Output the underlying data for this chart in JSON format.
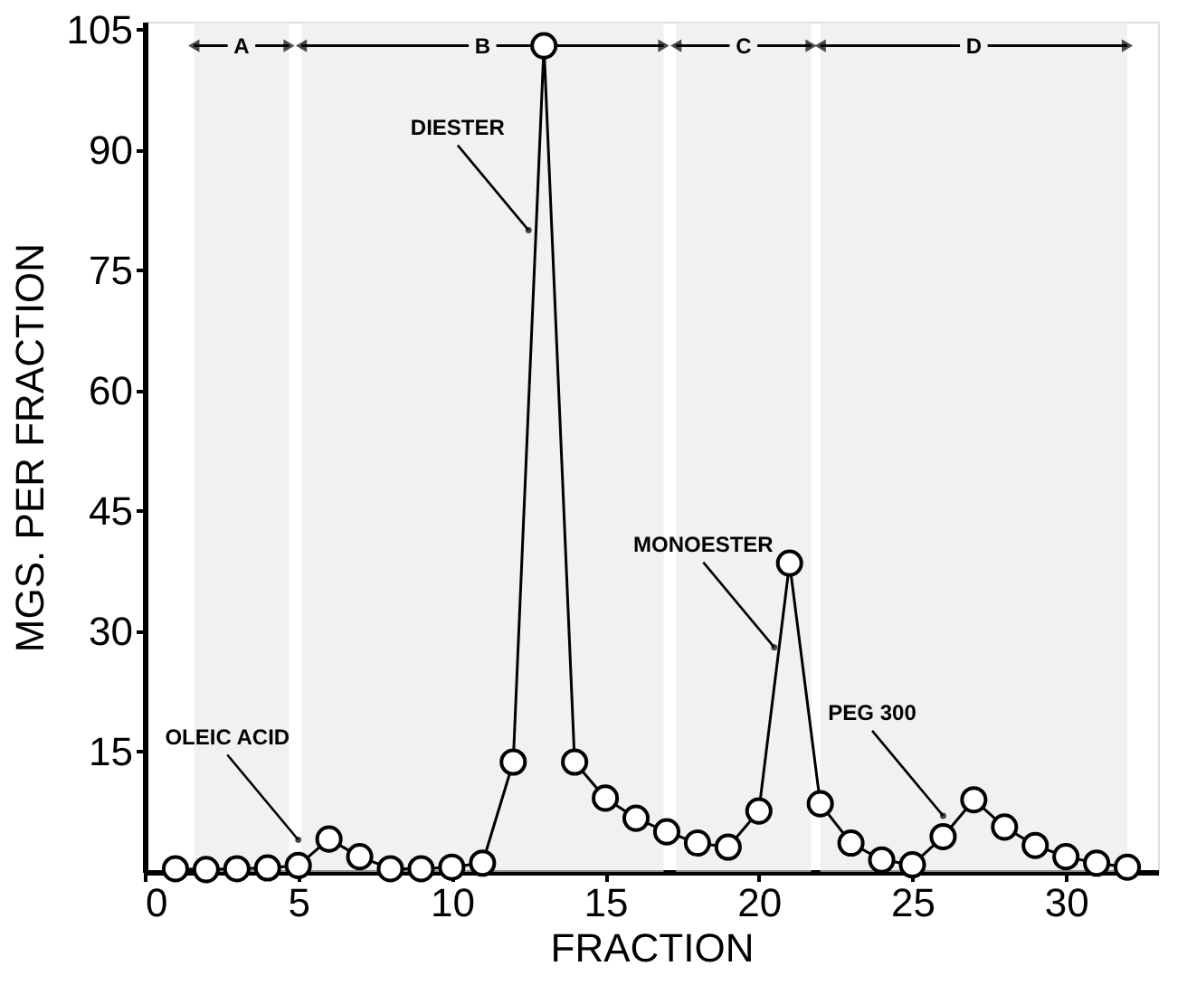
{
  "chart_data": {
    "type": "line",
    "xlabel": "FRACTION",
    "ylabel": "MGS. PER FRACTION",
    "x": [
      1,
      2,
      3,
      4,
      5,
      6,
      7,
      8,
      9,
      10,
      11,
      12,
      13,
      14,
      15,
      16,
      17,
      18,
      19,
      20,
      21,
      22,
      23,
      24,
      25,
      26,
      27,
      28,
      29,
      30,
      31,
      32
    ],
    "series": [
      {
        "color": "#000000",
        "values": [
          0.4,
          0.3,
          0.4,
          0.5,
          0.8,
          4.1,
          1.9,
          0.4,
          0.4,
          0.6,
          1.1,
          13.7,
          103,
          13.7,
          9.2,
          6.7,
          5.0,
          3.6,
          3.1,
          7.6,
          38.5,
          8.5,
          3.6,
          1.5,
          0.9,
          4.4,
          9.0,
          5.6,
          3.3,
          1.9,
          1.1,
          0.6
        ]
      }
    ],
    "xlim": [
      0,
      33
    ],
    "xticks": [
      0,
      5,
      10,
      15,
      20,
      25,
      30
    ],
    "ylim": [
      0,
      106
    ],
    "yticks": [
      15,
      30,
      45,
      60,
      75,
      90,
      105
    ],
    "bands": [
      {
        "axis": "x",
        "from": 1.6,
        "to": 4.7,
        "label": "A"
      },
      {
        "axis": "x",
        "from": 5.1,
        "to": 16.9,
        "label": "B"
      },
      {
        "axis": "x",
        "from": 17.3,
        "to": 21.7,
        "label": "C"
      },
      {
        "axis": "x",
        "from": 22.0,
        "to": 32.0,
        "label": "D"
      }
    ],
    "annotations": [
      {
        "text": "DIESTER",
        "x": 12.5,
        "y": 80
      },
      {
        "text": "MONOESTER",
        "x": 20.5,
        "y": 28
      },
      {
        "text": "OLEIC ACID",
        "x": 5,
        "y": 4
      },
      {
        "text": "PEG 300",
        "x": 26,
        "y": 7
      }
    ],
    "grid": false,
    "marker": "circle",
    "line_style": "solid"
  }
}
